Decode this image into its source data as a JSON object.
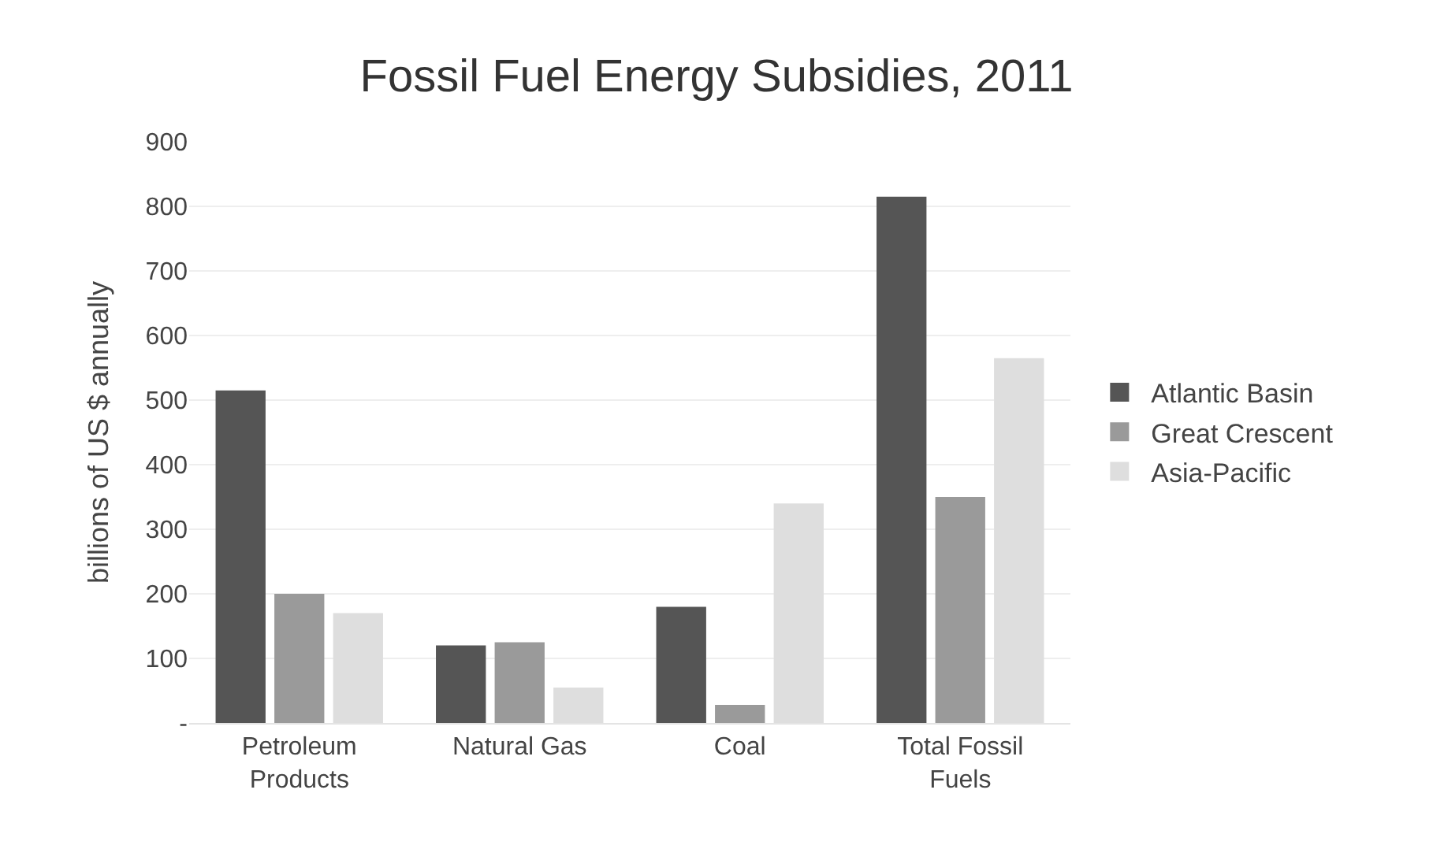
{
  "chart_data": {
    "type": "bar",
    "title": "Fossil Fuel Energy Subsidies, 2011",
    "ylabel": "billions of US $ annually",
    "categories": [
      "Petroleum\nProducts",
      "Natural Gas",
      "Coal",
      "Total Fossil\nFuels"
    ],
    "series": [
      {
        "name": "Atlantic Basin",
        "color": "#555555",
        "values": [
          515,
          120,
          180,
          815
        ]
      },
      {
        "name": "Great Crescent",
        "color": "#9a9a9a",
        "values": [
          200,
          125,
          28,
          350
        ]
      },
      {
        "name": "Asia-Pacific",
        "color": "#dedede",
        "values": [
          170,
          55,
          340,
          565
        ]
      }
    ],
    "ylim": [
      0,
      900
    ],
    "yticks": [
      {
        "value": 0,
        "label": "-"
      },
      100,
      200,
      300,
      400,
      500,
      600,
      700,
      800,
      900
    ],
    "grid": "y",
    "legend": "right"
  }
}
